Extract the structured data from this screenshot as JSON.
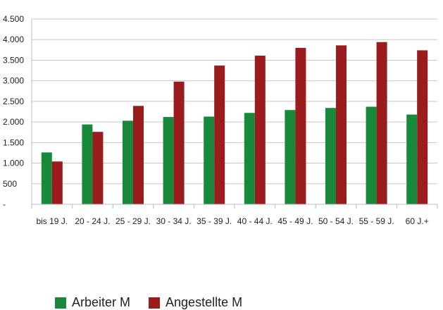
{
  "chart_data": {
    "type": "bar",
    "categories": [
      "bis 19 J.",
      "20 - 24 J.",
      "25 - 29 J.",
      "30 - 34 J.",
      "35 - 39 J.",
      "40 - 44 J.",
      "45 - 49 J.",
      "50 - 54 J.",
      "55 - 59 J.",
      "60 J.+"
    ],
    "series": [
      {
        "name": "Arbeiter M",
        "color": "#18893a",
        "values": [
          1260,
          1940,
          2030,
          2120,
          2130,
          2220,
          2290,
          2340,
          2370,
          2180
        ]
      },
      {
        "name": "Angestellte M",
        "color": "#9b1c1c",
        "values": [
          1040,
          1760,
          2390,
          2980,
          3370,
          3610,
          3800,
          3860,
          3940,
          3740
        ]
      }
    ],
    "y_ticks": [
      0,
      500,
      1000,
      1500,
      2000,
      2500,
      3000,
      3500,
      4000,
      4500
    ],
    "y_tick_labels": [
      "-",
      "500",
      "1.000",
      "1.500",
      "2.000",
      "2.500",
      "3.000",
      "3.500",
      "4.000",
      "4.500"
    ],
    "ylim": [
      0,
      4500
    ],
    "grid": true,
    "legend_position": "bottom-left"
  }
}
